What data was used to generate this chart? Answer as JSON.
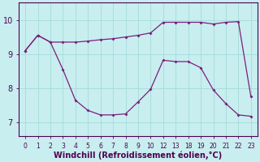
{
  "background_color": "#c8eef0",
  "line_color": "#7b1f7b",
  "grid_color": "#aadddd",
  "xlabel": "Windchill (Refroidissement éolien,°C)",
  "xlabel_fontsize": 7,
  "ylim": [
    6.6,
    10.5
  ],
  "yticks": [
    7,
    8,
    9,
    10
  ],
  "tick_labels": [
    "0",
    "1",
    "2",
    "3",
    "4",
    "5",
    "6",
    "7",
    "8",
    "9",
    "10",
    "12",
    "13",
    "18",
    "19",
    "20",
    "21",
    "22",
    "23"
  ],
  "series1_y": [
    9.1,
    9.55,
    9.35,
    9.35,
    9.35,
    9.38,
    9.42,
    9.45,
    9.5,
    9.55,
    9.62,
    9.93,
    9.93,
    9.93,
    9.93,
    9.88,
    9.93,
    9.95,
    7.75
  ],
  "series2_y": [
    9.1,
    9.55,
    9.35,
    8.55,
    7.65,
    7.35,
    7.22,
    7.22,
    7.25,
    7.6,
    7.97,
    8.82,
    8.78,
    8.78,
    8.6,
    7.95,
    7.55,
    7.22,
    7.18
  ]
}
